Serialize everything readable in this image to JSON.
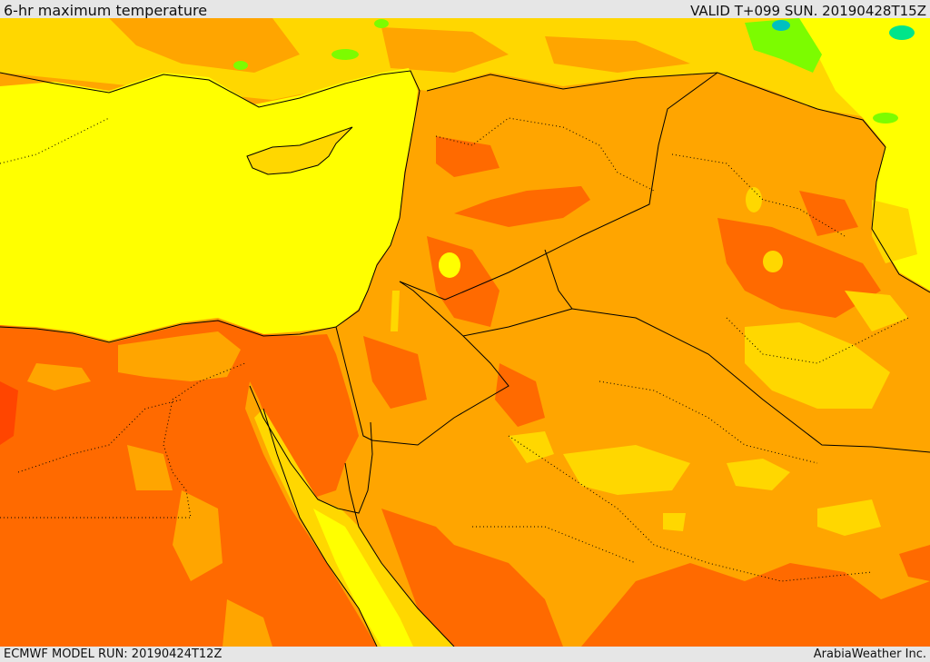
{
  "header": {
    "title": "6-hr maximum temperature",
    "valid": "VALID T+099 SUN. 20190428T15Z"
  },
  "footer": {
    "model_run": "ECMWF MODEL RUN: 20190424T12Z",
    "credit": "ArabiaWeather Inc."
  },
  "palette": {
    "warm": "#ffff00",
    "hot": "#ffd700",
    "hotter": "#ffa500",
    "hottest": "#ff6a00",
    "extreme": "#ff4500",
    "cool": "#7cfc00",
    "coolest": "#00e58a",
    "border": "#000000"
  },
  "map": {
    "region": "eastern-mediterranean-middle-east",
    "features": [
      "mediterranean-sea",
      "cyprus",
      "nile-delta",
      "sinai-peninsula",
      "dead-sea",
      "red-sea",
      "gulf-of-suez",
      "gulf-of-aqaba",
      "syria",
      "iraq",
      "jordan",
      "saudi-arabia",
      "egypt",
      "turkey"
    ]
  }
}
